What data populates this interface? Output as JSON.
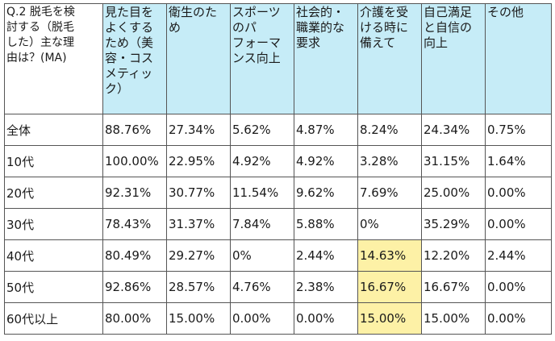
{
  "table": {
    "question_lines": [
      "Q.2 脱毛を検",
      "討する（脱毛",
      "した）主な理",
      "由は？(MA)"
    ],
    "columns": [
      {
        "lines": [
          "見た目を",
          "よくする",
          "ため（美",
          "容・コス",
          "メティッ",
          "ク）"
        ]
      },
      {
        "lines": [
          "衛生のた",
          "め"
        ]
      },
      {
        "lines": [
          "スポーツ",
          "のパ",
          "フォーマ",
          "ンス向上"
        ]
      },
      {
        "lines": [
          "社会的・",
          "職業的な",
          "要求"
        ]
      },
      {
        "lines": [
          "介護を受",
          "ける時に",
          "備えて"
        ]
      },
      {
        "lines": [
          "自己満足",
          "と自信の",
          "向上"
        ]
      },
      {
        "lines": [
          "その他"
        ]
      }
    ],
    "rows": [
      {
        "label": "全体",
        "cells": [
          "88.76%",
          "27.34%",
          "5.62%",
          "4.87%",
          "8.24%",
          "24.34%",
          "0.75%"
        ]
      },
      {
        "label": "10代",
        "cells": [
          "100.00%",
          "22.95%",
          "4.92%",
          "4.92%",
          "3.28%",
          "31.15%",
          "1.64%"
        ]
      },
      {
        "label": "20代",
        "cells": [
          "92.31%",
          "30.77%",
          "11.54%",
          "9.62%",
          "7.69%",
          "25.00%",
          "0.00%"
        ]
      },
      {
        "label": "30代",
        "cells": [
          "78.43%",
          "31.37%",
          "7.84%",
          "5.88%",
          "0%",
          "35.29%",
          "0.00%"
        ]
      },
      {
        "label": "40代",
        "cells": [
          "80.49%",
          "29.27%",
          "0%",
          "2.44%",
          "14.63%",
          "12.20%",
          "2.44%"
        ]
      },
      {
        "label": "50代",
        "cells": [
          "92.86%",
          "28.57%",
          "4.76%",
          "2.38%",
          "16.67%",
          "16.67%",
          "0.00%"
        ]
      },
      {
        "label": "60代以上",
        "cells": [
          "80.00%",
          "15.00%",
          "0.00%",
          "0.00%",
          "15.00%",
          "15.00%",
          "0.00%"
        ]
      }
    ],
    "highlighted": [
      [
        4,
        4
      ],
      [
        5,
        4
      ],
      [
        6,
        4
      ]
    ],
    "colors": {
      "header_bg": "#c6ecf7",
      "highlight_bg": "#fdf1a6",
      "border": "#555555"
    }
  }
}
